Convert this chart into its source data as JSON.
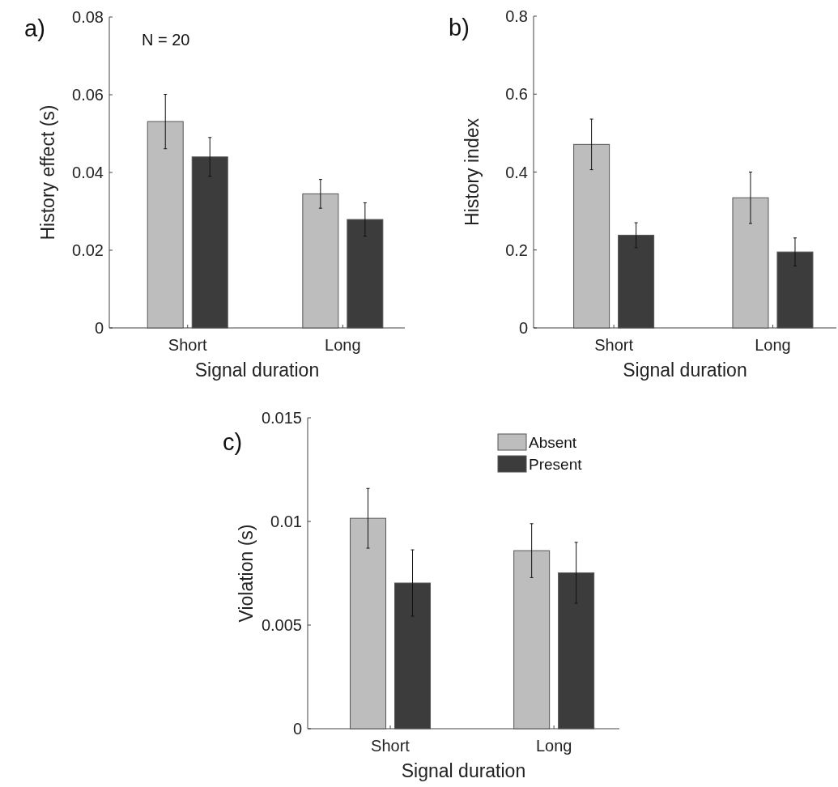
{
  "chart_data": [
    {
      "type": "bar",
      "title": "a)",
      "ylabel": "History effect (s)",
      "xlabel": "Signal duration",
      "categories": [
        "Short",
        "Long"
      ],
      "ylim": [
        0,
        0.08
      ],
      "yticks": [
        0,
        0.02,
        0.04,
        0.06,
        0.08
      ],
      "legend": false,
      "annotations": [
        "N = 20"
      ],
      "series": [
        {
          "color": "#bdbdbd",
          "values": [
            0.0531,
            0.0345
          ],
          "errors": [
            0.007,
            0.0037
          ]
        },
        {
          "color": "#3c3c3c",
          "values": [
            0.044,
            0.0279
          ],
          "errors": [
            0.005,
            0.0043
          ]
        }
      ]
    },
    {
      "type": "bar",
      "title": "b)",
      "ylabel": "History index",
      "xlabel": "Signal duration",
      "categories": [
        "Short",
        "Long"
      ],
      "ylim": [
        0,
        0.8
      ],
      "yticks": [
        0,
        0.2,
        0.4,
        0.6,
        0.8
      ],
      "legend": false,
      "series": [
        {
          "color": "#bdbdbd",
          "values": [
            0.471,
            0.334
          ],
          "errors": [
            0.065,
            0.066
          ]
        },
        {
          "color": "#3c3c3c",
          "values": [
            0.238,
            0.195
          ],
          "errors": [
            0.032,
            0.036
          ]
        }
      ]
    },
    {
      "type": "bar",
      "title": "c)",
      "ylabel": "Violation (s)",
      "xlabel": "Signal duration",
      "categories": [
        "Short",
        "Long"
      ],
      "ylim": [
        0,
        0.015
      ],
      "yticks": [
        0,
        0.005,
        0.01,
        0.015
      ],
      "legend": "top right",
      "series": [
        {
          "name": "Absent",
          "color": "#bdbdbd",
          "values": [
            0.01015,
            0.00859
          ],
          "errors": [
            0.00144,
            0.0013
          ]
        },
        {
          "name": "Present",
          "color": "#3c3c3c",
          "values": [
            0.00703,
            0.00752
          ],
          "errors": [
            0.0016,
            0.00147
          ]
        }
      ]
    }
  ]
}
